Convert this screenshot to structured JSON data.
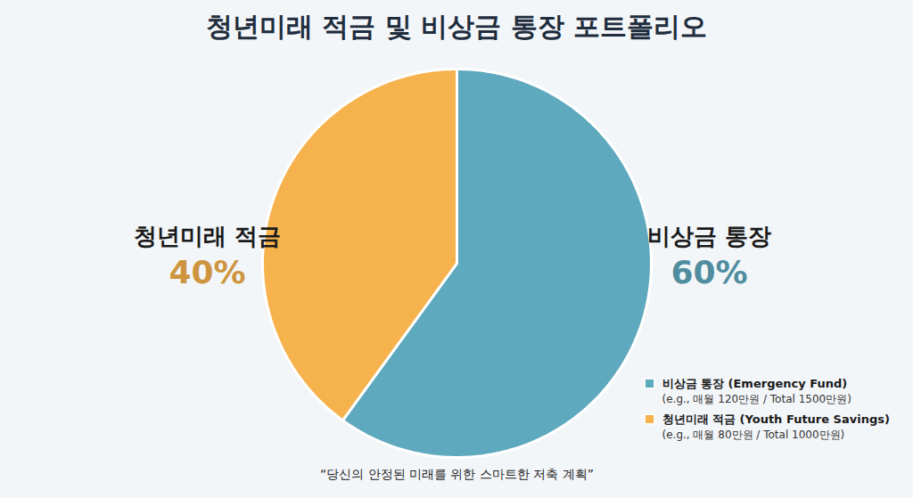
{
  "chart_data": {
    "type": "pie",
    "title": "청년미래 적금 및 비상금 통장 포트폴리오",
    "categories": [
      "비상금 통장",
      "청년미래 적금"
    ],
    "values": [
      60,
      40
    ],
    "value_labels": [
      "60%",
      "40%"
    ],
    "colors": [
      "#5fa9be",
      "#f6b24c"
    ],
    "data_labels": true,
    "legend": "bottom-right",
    "legend_labels": [
      "비상금 통장 (Emergency Fund)",
      "청년미래 적금 (Youth Future Savings)"
    ],
    "legend_notes": [
      "(e.g., 매월 120만원 / Total 1500만원)",
      "(e.g., 매월 80만원 / Total 1000만원)"
    ],
    "caption": "“당신의 안정된 미래를 위한 스마트한 저축 계획”"
  }
}
